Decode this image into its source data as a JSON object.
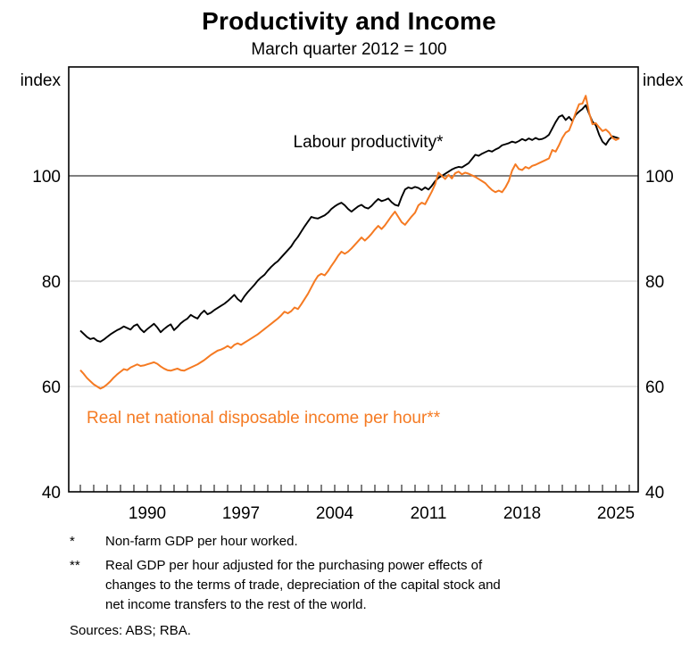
{
  "page": {
    "title": "Productivity and Income",
    "subtitle": "March quarter 2012 = 100"
  },
  "axis": {
    "unit_left": "index",
    "unit_right": "index",
    "yticks": [
      40,
      60,
      80,
      100
    ],
    "xticks": [
      1990,
      1997,
      2004,
      2011,
      2018,
      2025
    ]
  },
  "annotations": {
    "black_label": "Labour productivity*",
    "orange_label": "Real net national disposable income per hour**"
  },
  "footnotes": [
    {
      "marker": "*",
      "lines": [
        "Non-farm GDP per hour worked."
      ]
    },
    {
      "marker": "**",
      "lines": [
        "Real GDP per hour adjusted for the purchasing power effects of",
        "changes to the terms of trade, depreciation of the capital stock and",
        "net income transfers to the rest of the world."
      ]
    }
  ],
  "sources": "Sources: ABS; RBA.",
  "colors": {
    "black_line": "#000000",
    "orange_line": "#f57a22",
    "grid_light": "#c8c8c8",
    "reference_line": "#555555",
    "axis_border": "#000000"
  },
  "chart_data": {
    "type": "line",
    "title": "Productivity and Income",
    "subtitle": "March quarter 2012 = 100",
    "ylabel": "index",
    "x_start": 1985.0,
    "x_step": 0.25,
    "x_axis_range": [
      1984.1,
      2026.7
    ],
    "y_axis_range": [
      40,
      120.7
    ],
    "gridlines_light": [
      60,
      80
    ],
    "reference_line_y": 100,
    "x_tick_years": [
      1990,
      1997,
      2004,
      2011,
      2018,
      2025
    ],
    "minor_ticks": {
      "from": 1985,
      "to": 2026,
      "step": 1
    },
    "y_tick_values": [
      40,
      60,
      80,
      100
    ],
    "series": [
      {
        "name": "Labour productivity (non-farm GDP per hour worked)",
        "label": "Labour productivity*",
        "color": "#000000",
        "values": [
          70.6,
          70.0,
          69.4,
          69.0,
          69.2,
          68.7,
          68.5,
          68.9,
          69.4,
          69.9,
          70.3,
          70.7,
          71.0,
          71.4,
          71.1,
          70.8,
          71.5,
          71.8,
          70.9,
          70.3,
          70.9,
          71.4,
          71.9,
          71.2,
          70.3,
          70.9,
          71.4,
          71.8,
          70.7,
          71.3,
          72.0,
          72.5,
          72.9,
          73.6,
          73.2,
          72.9,
          73.8,
          74.4,
          73.7,
          74.0,
          74.5,
          74.9,
          75.3,
          75.7,
          76.2,
          76.8,
          77.4,
          76.6,
          76.1,
          77.1,
          77.9,
          78.6,
          79.3,
          80.1,
          80.7,
          81.2,
          82.0,
          82.7,
          83.3,
          83.8,
          84.5,
          85.2,
          85.9,
          86.6,
          87.6,
          88.4,
          89.4,
          90.4,
          91.3,
          92.2,
          92.0,
          91.9,
          92.2,
          92.5,
          93.0,
          93.7,
          94.2,
          94.6,
          94.9,
          94.4,
          93.7,
          93.2,
          93.7,
          94.2,
          94.5,
          94.0,
          93.8,
          94.3,
          95.0,
          95.6,
          95.2,
          95.4,
          95.7,
          95.0,
          94.5,
          94.3,
          96.0,
          97.4,
          97.8,
          97.6,
          97.9,
          97.7,
          97.3,
          97.8,
          97.4,
          98.1,
          99.0,
          99.6,
          100.0,
          100.4,
          100.8,
          101.2,
          101.5,
          101.7,
          101.6,
          102.0,
          102.4,
          103.2,
          104.0,
          103.8,
          104.2,
          104.5,
          104.8,
          104.6,
          105.0,
          105.3,
          105.8,
          106.0,
          106.2,
          106.5,
          106.3,
          106.6,
          107.0,
          106.7,
          107.1,
          106.8,
          107.2,
          106.9,
          107.0,
          107.3,
          107.8,
          109.0,
          110.2,
          111.2,
          111.5,
          110.6,
          111.2,
          110.4,
          111.6,
          112.2,
          112.7,
          113.4,
          111.8,
          110.3,
          109.6,
          107.8,
          106.5,
          105.9,
          106.9,
          107.5,
          107.3,
          107.1
        ]
      },
      {
        "name": "Real net national disposable income per hour",
        "label": "Real net national disposable income per hour**",
        "color": "#f57a22",
        "values": [
          63.1,
          62.4,
          61.6,
          61.0,
          60.4,
          60.0,
          59.6,
          59.9,
          60.4,
          61.0,
          61.7,
          62.3,
          62.8,
          63.3,
          63.1,
          63.6,
          63.9,
          64.2,
          63.9,
          64.0,
          64.2,
          64.4,
          64.6,
          64.3,
          63.8,
          63.4,
          63.1,
          63.0,
          63.2,
          63.4,
          63.1,
          63.0,
          63.3,
          63.6,
          63.9,
          64.2,
          64.6,
          65.0,
          65.5,
          66.0,
          66.4,
          66.8,
          67.0,
          67.3,
          67.7,
          67.3,
          67.9,
          68.2,
          67.9,
          68.3,
          68.7,
          69.1,
          69.5,
          69.9,
          70.4,
          70.9,
          71.4,
          71.9,
          72.4,
          72.9,
          73.5,
          74.2,
          73.9,
          74.3,
          75.0,
          74.7,
          75.6,
          76.6,
          77.6,
          78.8,
          80.0,
          81.0,
          81.4,
          81.1,
          81.9,
          82.9,
          83.8,
          84.8,
          85.6,
          85.2,
          85.6,
          86.2,
          86.9,
          87.6,
          88.3,
          87.7,
          88.3,
          89.0,
          89.8,
          90.5,
          89.9,
          90.6,
          91.5,
          92.4,
          93.2,
          92.2,
          91.2,
          90.7,
          91.5,
          92.3,
          93.0,
          94.4,
          94.9,
          94.6,
          95.8,
          97.0,
          98.4,
          100.6,
          100.0,
          99.4,
          100.2,
          99.5,
          100.5,
          100.8,
          100.3,
          100.6,
          100.4,
          100.1,
          99.8,
          99.4,
          99.0,
          98.6,
          97.9,
          97.3,
          96.9,
          97.2,
          96.9,
          97.8,
          99.0,
          101.0,
          102.2,
          101.3,
          101.1,
          101.7,
          101.4,
          101.9,
          102.1,
          102.4,
          102.7,
          103.0,
          103.3,
          104.9,
          104.6,
          105.8,
          107.2,
          108.2,
          108.6,
          110.2,
          112.0,
          113.6,
          113.7,
          115.2,
          112.0,
          109.8,
          110.0,
          109.2,
          108.5,
          108.8,
          108.2,
          107.2,
          106.8,
          107.1
        ]
      }
    ]
  }
}
